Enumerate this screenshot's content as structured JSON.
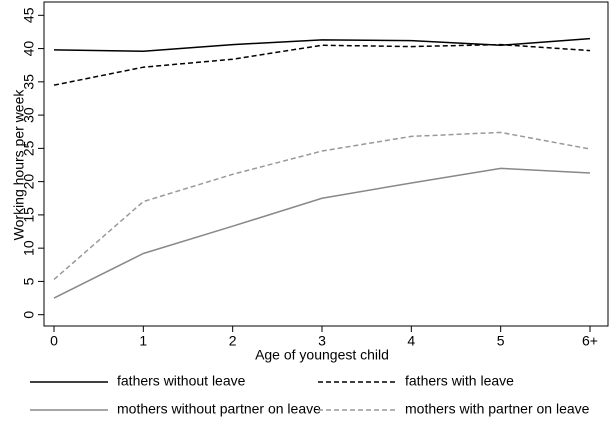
{
  "chart_data": {
    "type": "line",
    "x_label": "Age of youngest child",
    "y_label": "Working hours per week",
    "categories": [
      "0",
      "1",
      "2",
      "3",
      "4",
      "5",
      "6+"
    ],
    "ylim": [
      -1.7,
      47
    ],
    "yticks": [
      0,
      5,
      10,
      15,
      20,
      25,
      30,
      35,
      40,
      45
    ],
    "legend": "bottom",
    "series": [
      {
        "name": "fathers without leave",
        "color": "#000000",
        "dash": "solid",
        "values": [
          39.8,
          39.6,
          40.6,
          41.3,
          41.2,
          40.5,
          41.5
        ]
      },
      {
        "name": "fathers with leave",
        "color": "#000000",
        "dash": "dashed",
        "values": [
          34.5,
          37.2,
          38.4,
          40.5,
          40.3,
          40.6,
          39.7
        ]
      },
      {
        "name": "mothers without partner on leave",
        "color": "#888888",
        "dash": "solid",
        "values": [
          2.5,
          9.2,
          13.3,
          17.5,
          19.8,
          22.0,
          21.3
        ]
      },
      {
        "name": "mothers with partner on leave",
        "color": "#999999",
        "dash": "dashed",
        "values": [
          5.3,
          17.0,
          21.1,
          24.6,
          26.8,
          27.4,
          24.9
        ]
      }
    ]
  }
}
